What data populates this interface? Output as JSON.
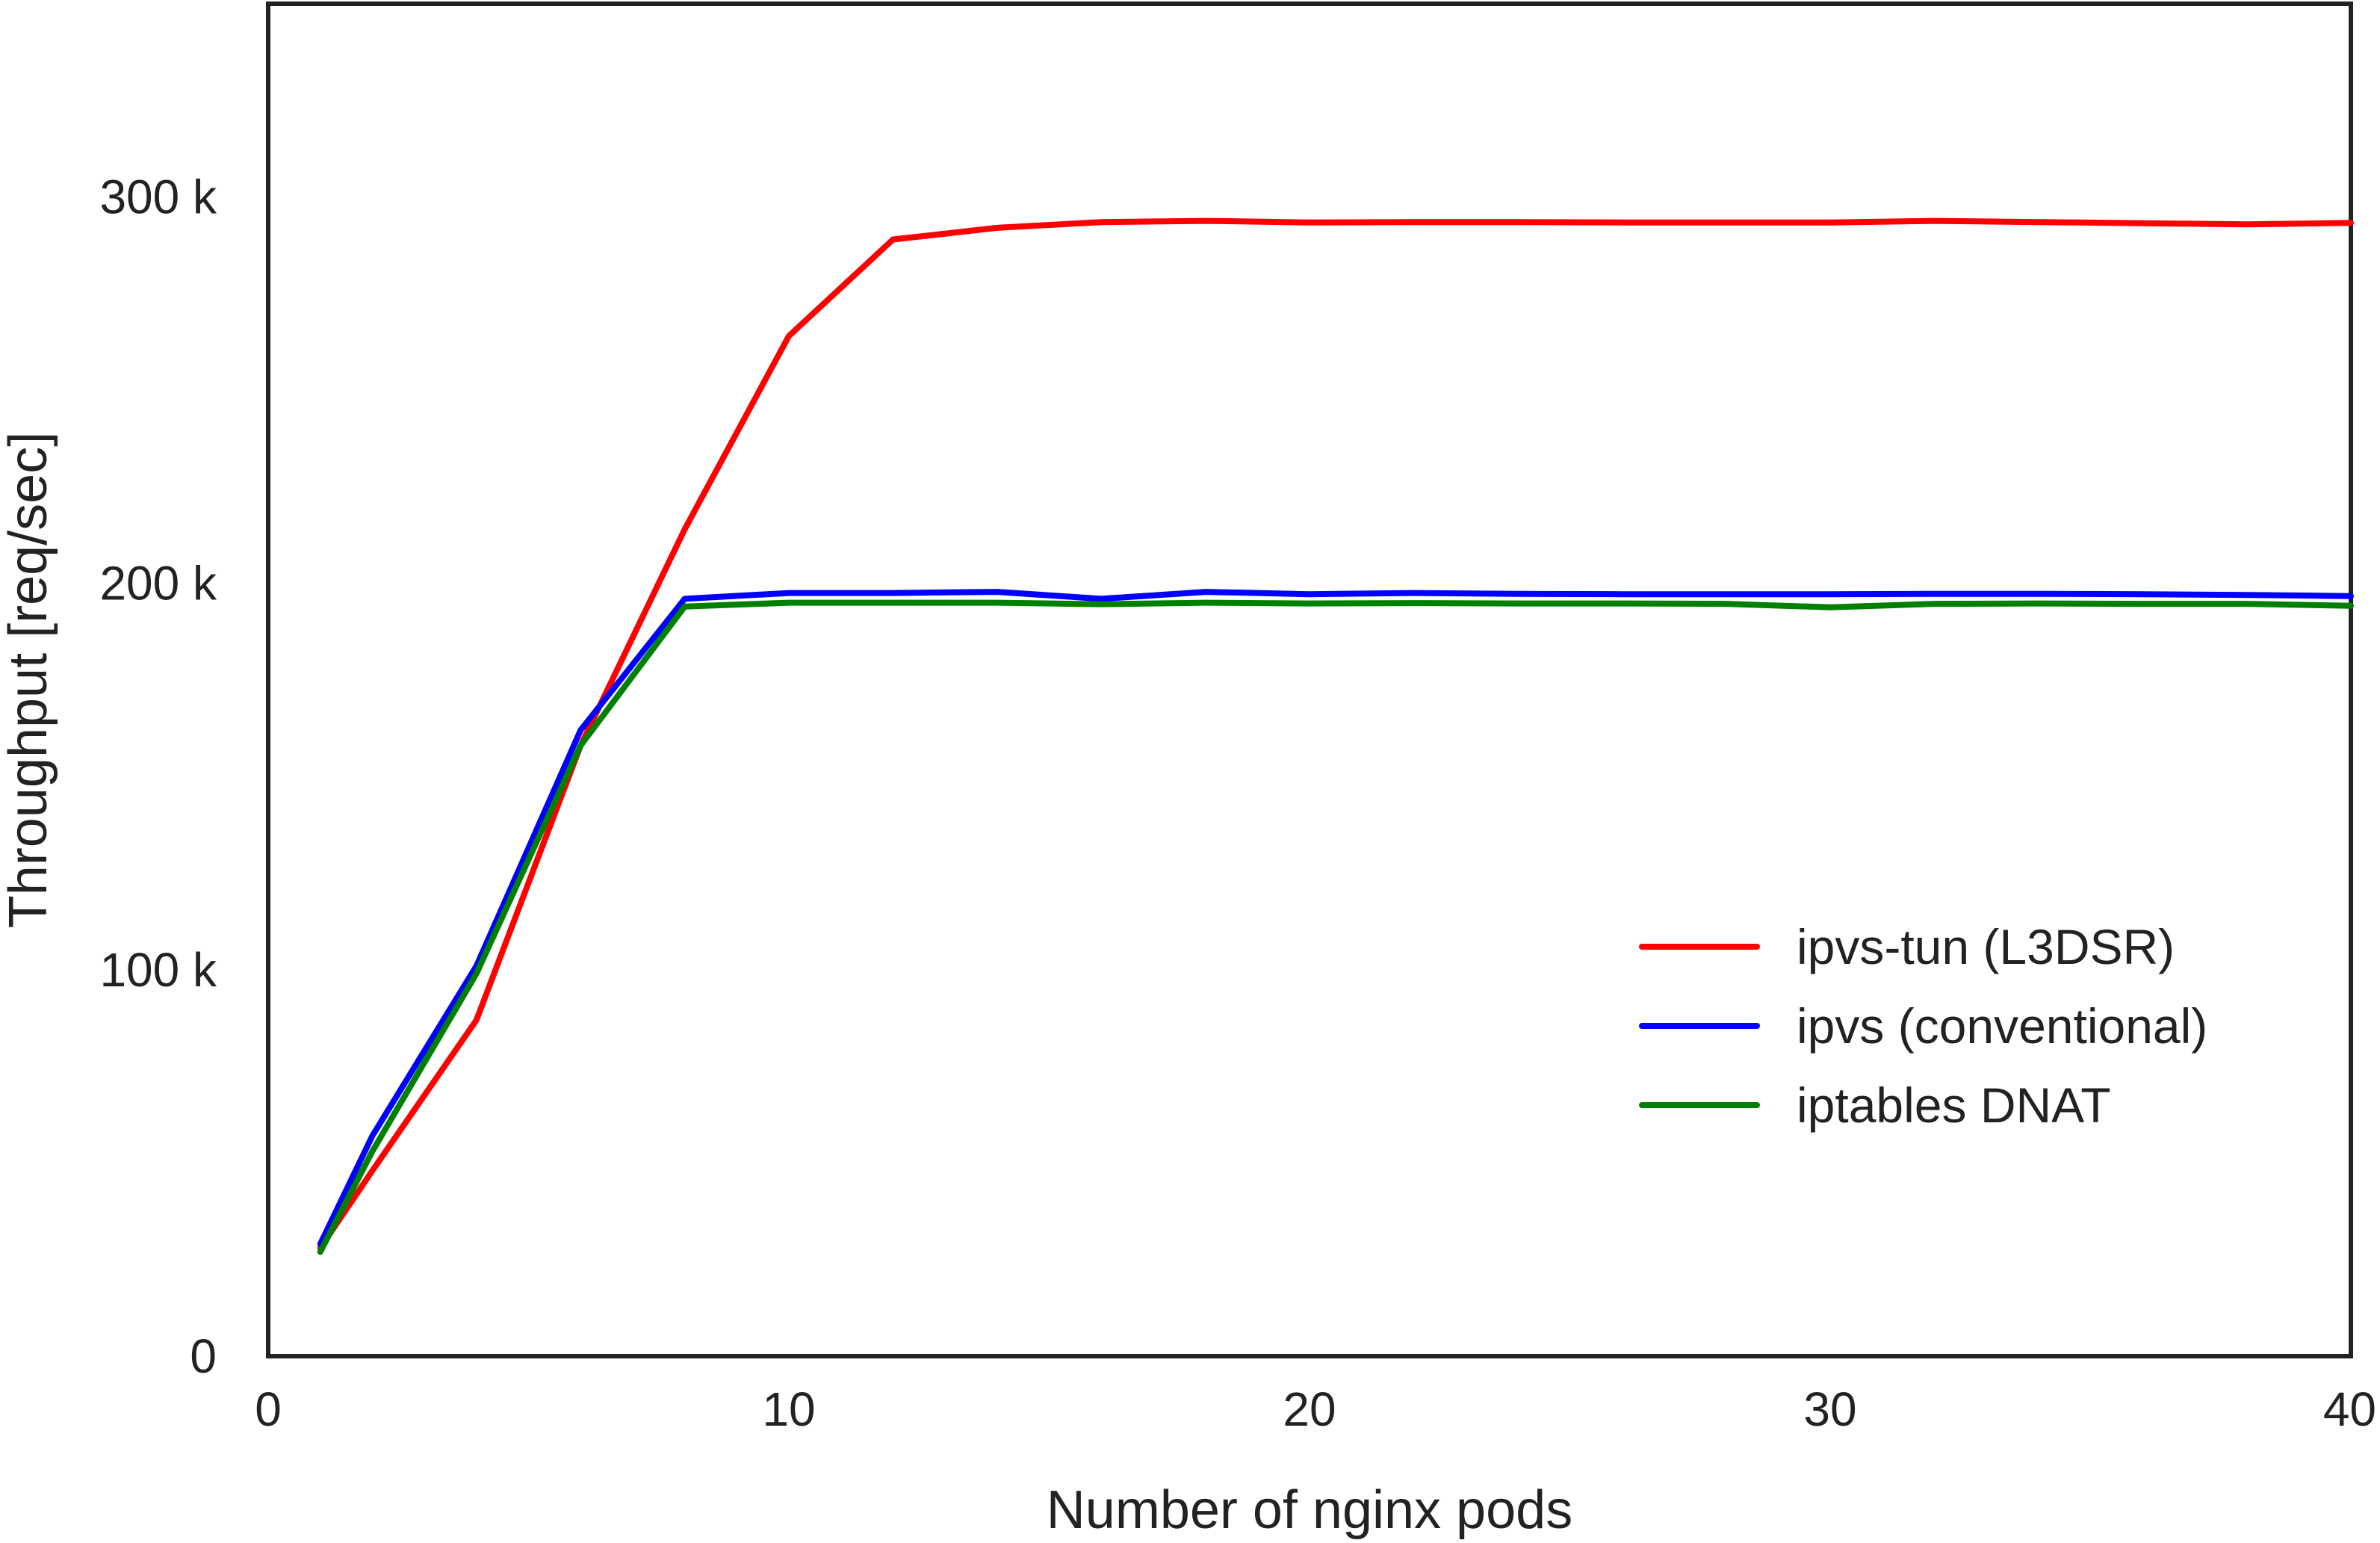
{
  "chart_data": {
    "type": "line",
    "title": "",
    "xlabel": "Number of nginx pods",
    "ylabel": "Throughput [req/sec]",
    "xlim": [
      0,
      40
    ],
    "ylim": [
      0,
      350000
    ],
    "grid": false,
    "legend_position": "center-right",
    "x_ticks": [
      {
        "value": 0,
        "label": "0"
      },
      {
        "value": 10,
        "label": "10"
      },
      {
        "value": 20,
        "label": "20"
      },
      {
        "value": 30,
        "label": "30"
      },
      {
        "value": 40,
        "label": "40"
      }
    ],
    "y_ticks": [
      {
        "value": 0,
        "label": "0"
      },
      {
        "value": 100000,
        "label": "100 k"
      },
      {
        "value": 200000,
        "label": "200 k"
      },
      {
        "value": 300000,
        "label": "300 k"
      }
    ],
    "x": [
      1,
      2,
      4,
      6,
      8,
      10,
      12,
      14,
      16,
      18,
      20,
      22,
      24,
      26,
      28,
      30,
      32,
      34,
      36,
      38,
      40
    ],
    "series": [
      {
        "name": "ipvs-tun (L3DSR)",
        "color": "#ff0000",
        "values": [
          28000,
          48000,
          87000,
          158000,
          214000,
          264000,
          289000,
          292000,
          293500,
          293800,
          293400,
          293500,
          293500,
          293400,
          293400,
          293400,
          293800,
          293500,
          293200,
          292900,
          293300
        ]
      },
      {
        "name": "ipvs (conventional)",
        "color": "#0000ff",
        "values": [
          29000,
          57000,
          101000,
          162000,
          196000,
          197500,
          197500,
          197800,
          196000,
          197800,
          197200,
          197500,
          197300,
          197200,
          197200,
          197200,
          197300,
          197300,
          197200,
          197000,
          196700
        ]
      },
      {
        "name": "iptables DNAT",
        "color": "#008000",
        "values": [
          27000,
          53000,
          99000,
          158000,
          194000,
          195000,
          195000,
          195000,
          194600,
          195000,
          194800,
          194900,
          194800,
          194800,
          194700,
          193800,
          194700,
          194800,
          194700,
          194700,
          194200
        ]
      }
    ]
  }
}
